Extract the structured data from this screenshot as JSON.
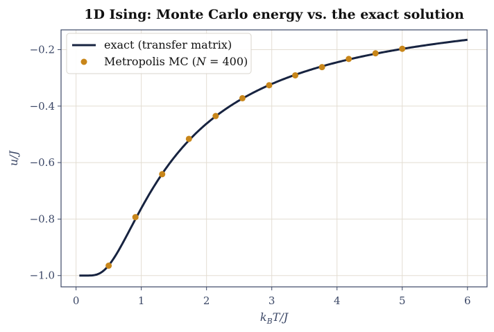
{
  "chart_data": {
    "type": "line",
    "title": "1D Ising: Monte Carlo energy vs. the exact solution",
    "xlabel": "k_BT/J",
    "ylabel": "u/J",
    "xlim": [
      -0.23,
      6.3
    ],
    "ylim": [
      -1.04,
      -0.13
    ],
    "xticks": [
      0,
      1,
      2,
      3,
      4,
      5,
      6
    ],
    "yticks": [
      -1.0,
      -0.8,
      -0.6,
      -0.4,
      -0.2
    ],
    "grid": true,
    "legend_position": "top-left",
    "series": [
      {
        "name": "exact (transfer matrix)",
        "kind": "line",
        "color": "#172340",
        "formula": "u/J = -tanh(J/(k_BT))",
        "x_range": [
          0.05,
          6.0
        ]
      },
      {
        "name": "Metropolis MC (N = 400)",
        "kind": "scatter",
        "color": "#c8861a",
        "x": [
          0.5,
          0.91,
          1.32,
          1.73,
          2.14,
          2.55,
          2.96,
          3.36,
          3.77,
          4.18,
          4.59,
          5.0
        ],
        "y": [
          -0.965,
          -0.793,
          -0.641,
          -0.516,
          -0.435,
          -0.372,
          -0.326,
          -0.291,
          -0.262,
          -0.233,
          -0.213,
          -0.197
        ]
      }
    ]
  }
}
